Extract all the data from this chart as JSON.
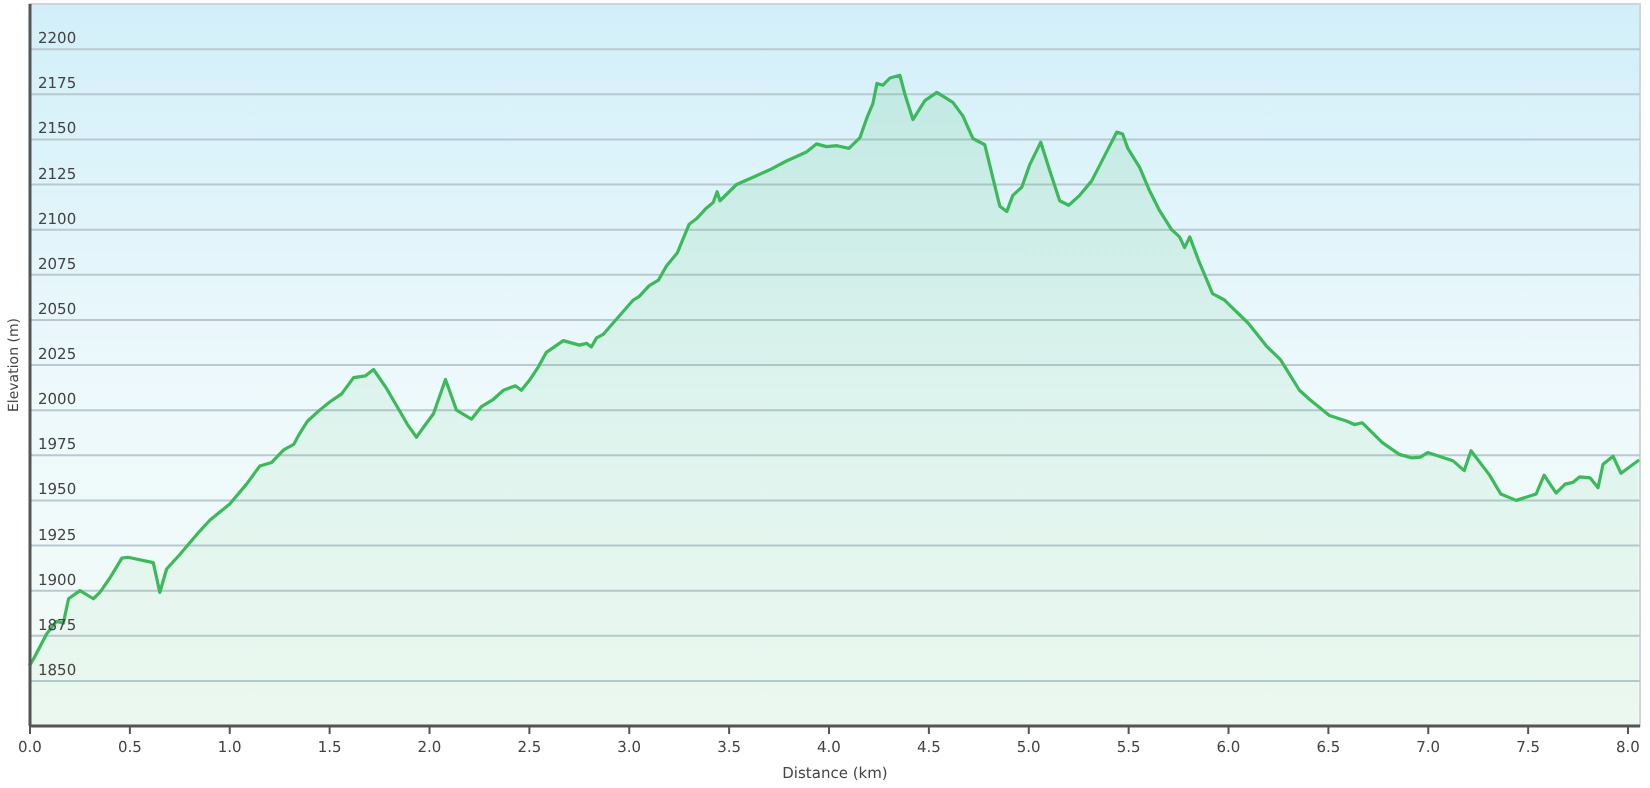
{
  "chart_data": {
    "type": "area",
    "xlabel": "Distance (km)",
    "ylabel": "Elevation (m)",
    "xlim": [
      0,
      8.06
    ],
    "ylim": [
      1825,
      2225
    ],
    "xticks": [
      {
        "value": 0,
        "label": "0.0"
      },
      {
        "value": 0.5,
        "label": "0.5"
      },
      {
        "value": 1,
        "label": "1.0"
      },
      {
        "value": 1.5,
        "label": "1.5"
      },
      {
        "value": 2,
        "label": "2.0"
      },
      {
        "value": 2.5,
        "label": "2.5"
      },
      {
        "value": 3,
        "label": "3.0"
      },
      {
        "value": 3.5,
        "label": "3.5"
      },
      {
        "value": 4,
        "label": "4.0"
      },
      {
        "value": 4.5,
        "label": "4.5"
      },
      {
        "value": 5,
        "label": "5.0"
      },
      {
        "value": 5.5,
        "label": "5.5"
      },
      {
        "value": 6,
        "label": "6.0"
      },
      {
        "value": 6.5,
        "label": "6.5"
      },
      {
        "value": 7,
        "label": "7.0"
      },
      {
        "value": 7.5,
        "label": "7.5"
      },
      {
        "value": 8,
        "label": "8.0"
      }
    ],
    "yticks": [
      1850,
      1875,
      1900,
      1925,
      1950,
      1975,
      2000,
      2025,
      2050,
      2075,
      2100,
      2125,
      2150,
      2175,
      2200
    ],
    "grid": "y",
    "series": [
      {
        "color": "#3cb95a",
        "x": [
          0,
          0.017,
          0.083,
          0.133,
          0.167,
          0.193,
          0.25,
          0.317,
          0.35,
          0.4,
          0.46,
          0.49,
          0.617,
          0.65,
          0.684,
          0.75,
          0.85,
          0.9,
          1.0,
          1.084,
          1.15,
          1.21,
          1.27,
          1.32,
          1.35,
          1.39,
          1.45,
          1.5,
          1.56,
          1.62,
          1.68,
          1.72,
          1.785,
          1.89,
          1.935,
          1.97,
          2.02,
          2.08,
          2.135,
          2.21,
          2.26,
          2.32,
          2.37,
          2.43,
          2.46,
          2.5,
          2.545,
          2.585,
          2.67,
          2.75,
          2.786,
          2.81,
          2.836,
          2.87,
          3.02,
          3.05,
          3.1,
          3.146,
          3.187,
          3.24,
          3.3,
          3.336,
          3.387,
          3.42,
          3.44,
          3.454,
          3.537,
          3.62,
          3.7,
          3.787,
          3.887,
          3.937,
          3.987,
          4.04,
          4.1,
          4.155,
          4.19,
          4.22,
          4.24,
          4.27,
          4.305,
          4.355,
          4.38,
          4.42,
          4.48,
          4.54,
          4.62,
          4.67,
          4.72,
          4.78,
          4.855,
          4.89,
          4.92,
          4.965,
          5.005,
          5.06,
          5.104,
          5.155,
          5.2,
          5.255,
          5.315,
          5.38,
          5.44,
          5.47,
          5.496,
          5.555,
          5.605,
          5.655,
          5.715,
          5.755,
          5.78,
          5.806,
          5.85,
          5.92,
          5.98,
          6.1,
          6.19,
          6.26,
          6.355,
          6.405,
          6.505,
          6.59,
          6.63,
          6.67,
          6.77,
          6.855,
          6.92,
          6.96,
          6.997,
          7.123,
          7.18,
          7.214,
          7.307,
          7.363,
          7.44,
          7.54,
          7.58,
          7.64,
          7.685,
          7.725,
          7.757,
          7.81,
          7.85,
          7.875,
          7.925,
          7.965,
          8.05
        ],
        "values": [
          1859,
          1862,
          1876,
          1883,
          1882,
          1895.5,
          1900,
          1895.5,
          1899,
          1907,
          1918,
          1918.5,
          1915.5,
          1899,
          1912,
          1920,
          1933,
          1939,
          1948,
          1959,
          1969,
          1971,
          1978,
          1981,
          1987,
          1994,
          2000,
          2004.5,
          2009,
          2018,
          2019,
          2022.5,
          2012,
          1992,
          1985,
          1990.5,
          1998,
          2017,
          2000,
          1995,
          2002,
          2006,
          2011,
          2013.5,
          2011,
          2016.5,
          2024,
          2032,
          2038.5,
          2036,
          2037,
          2035,
          2040,
          2042,
          2061,
          2063,
          2069,
          2072,
          2080,
          2087,
          2103,
          2106,
          2112,
          2115,
          2121,
          2116,
          2125,
          2129,
          2133,
          2138,
          2143,
          2147.5,
          2146,
          2146.5,
          2145,
          2151,
          2162,
          2170,
          2181,
          2180,
          2184,
          2185.5,
          2175,
          2161,
          2171.5,
          2176,
          2170.5,
          2163,
          2150.5,
          2147,
          2113,
          2110,
          2119,
          2123.5,
          2136,
          2148.5,
          2133,
          2116,
          2113.5,
          2119,
          2127,
          2141,
          2154,
          2153,
          2145,
          2134.5,
          2121.5,
          2110.5,
          2100,
          2096,
          2090,
          2096,
          2083,
          2064.5,
          2061,
          2048,
          2035.5,
          2028,
          2011,
          2006,
          1997,
          1994,
          1992,
          1993,
          1982,
          1975.5,
          1973.5,
          1974,
          1976.5,
          1972,
          1966.5,
          1977.5,
          1964,
          1953.5,
          1950,
          1953.5,
          1964,
          1954,
          1959,
          1960,
          1963,
          1962.5,
          1957,
          1970,
          1974.5,
          1965,
          1972
        ]
      }
    ]
  }
}
